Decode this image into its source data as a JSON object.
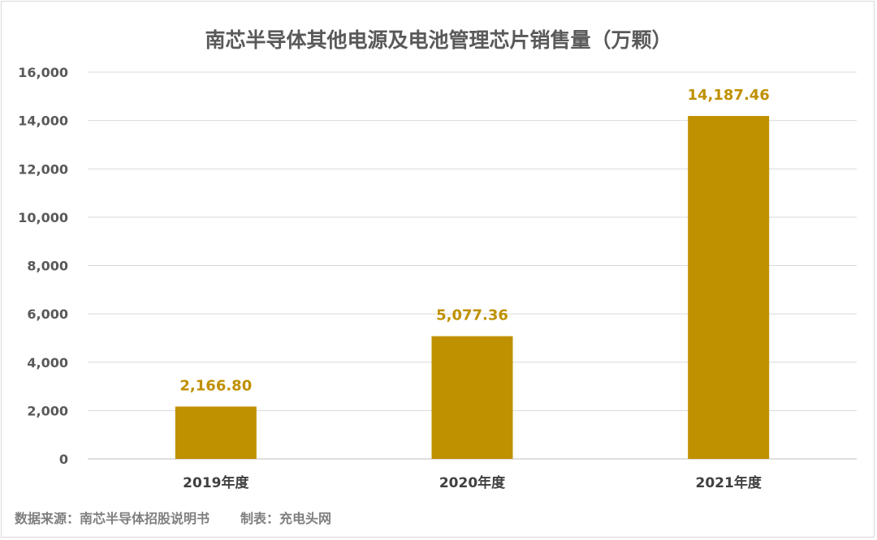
{
  "chart_data": {
    "type": "bar",
    "title": "南芯半导体其他电源及电池管理芯片销售量（万颗）",
    "categories": [
      "2019年度",
      "2020年度",
      "2021年度"
    ],
    "values": [
      2166.8,
      5077.36,
      14187.46
    ],
    "value_labels": [
      "2,166.80",
      "5,077.36",
      "14,187.46"
    ],
    "ylim": [
      0,
      16000
    ],
    "yticks": [
      0,
      2000,
      4000,
      6000,
      8000,
      10000,
      12000,
      14000,
      16000
    ],
    "ytick_labels": [
      "0",
      "2,000",
      "4,000",
      "6,000",
      "8,000",
      "10,000",
      "12,000",
      "14,000",
      "16,000"
    ],
    "grid": true,
    "bar_color": "#bf9000",
    "label_color": "#bf9000"
  },
  "footer": {
    "source": "数据来源：南芯半导体招股说明书",
    "maker": "制表：充电头网"
  }
}
